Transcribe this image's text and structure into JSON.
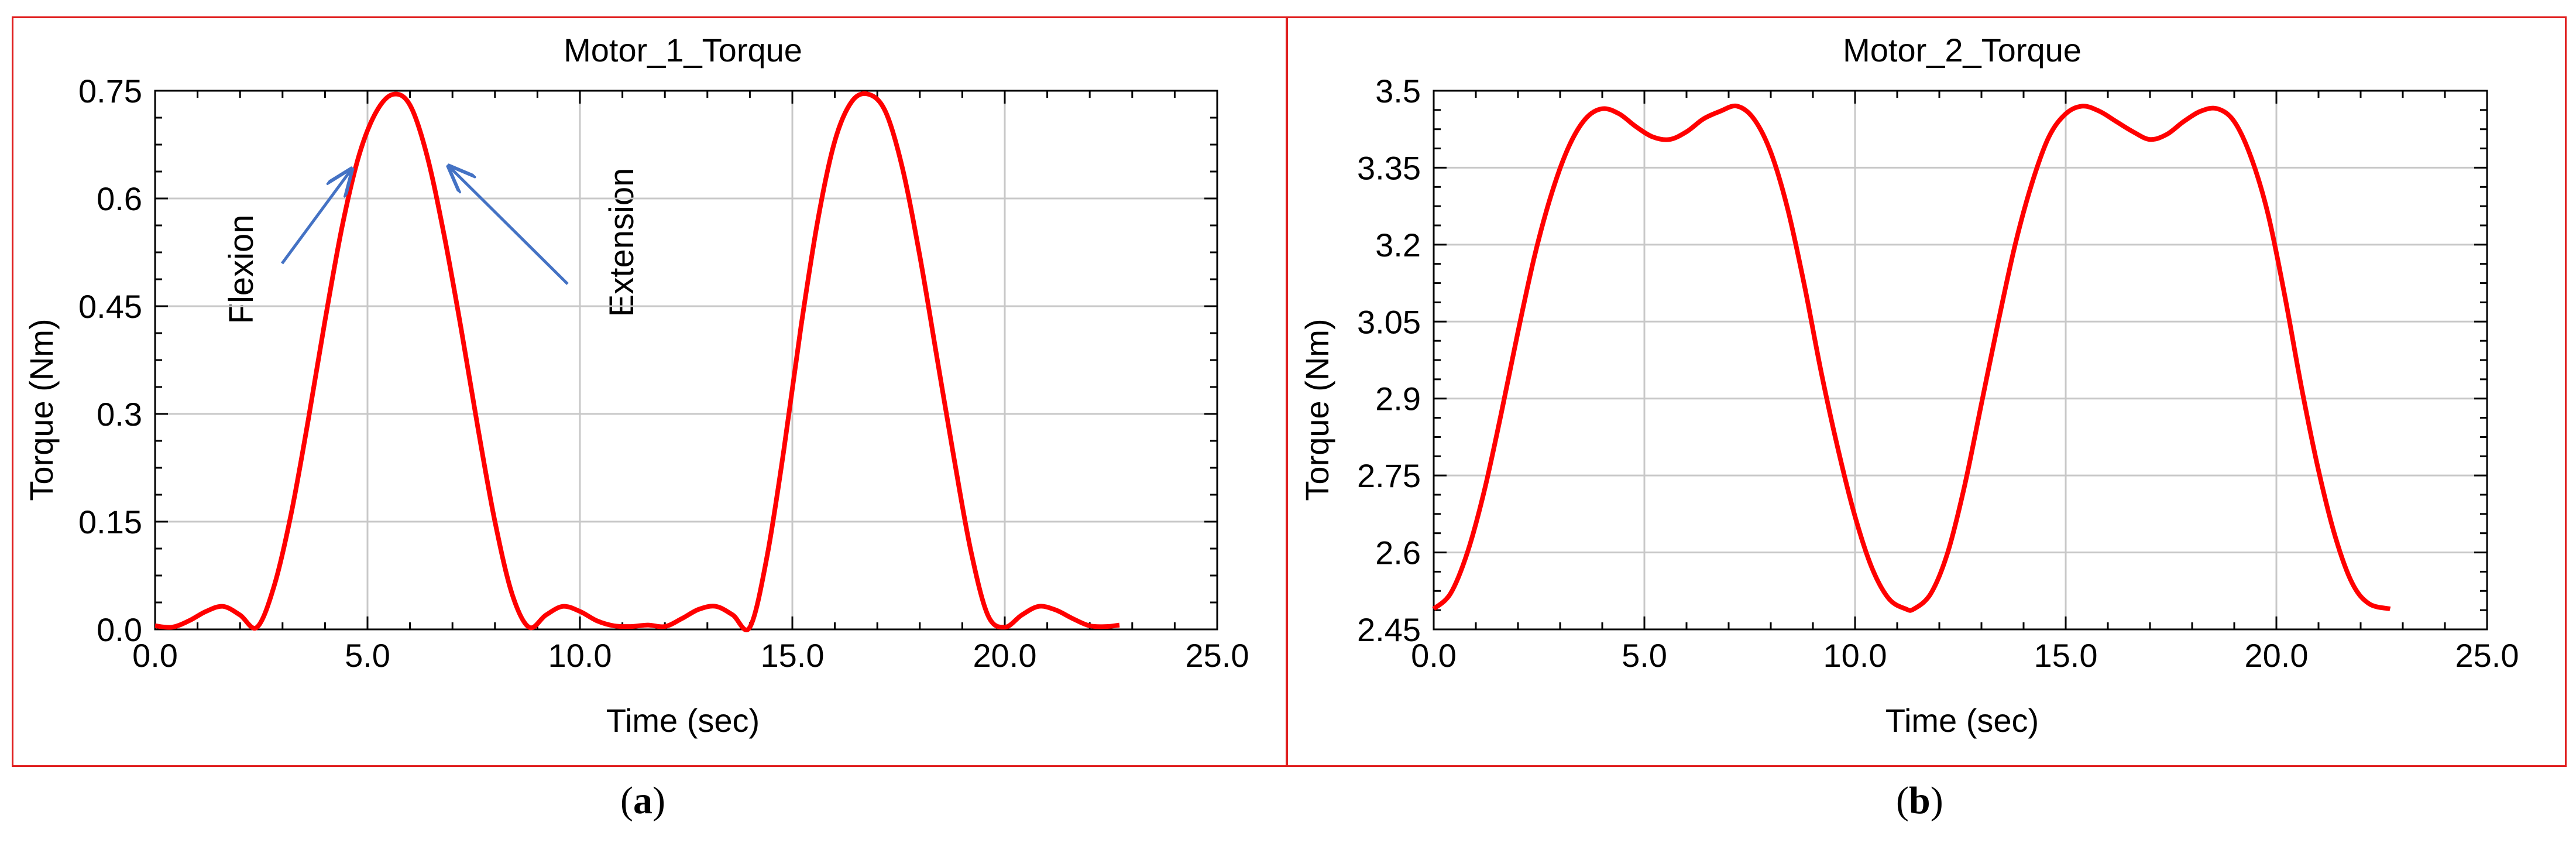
{
  "chart_data": [
    {
      "type": "line",
      "title": "Motor_1_Torque",
      "xlabel": "Time (sec)",
      "ylabel": "Torque (Nm)",
      "xlim": [
        0,
        25
      ],
      "ylim": [
        0,
        0.75
      ],
      "x_ticks": [
        "0.0",
        "5.0",
        "10.0",
        "15.0",
        "20.0",
        "25.0"
      ],
      "y_ticks": [
        "0.0",
        "0.15",
        "0.3",
        "0.45",
        "0.6",
        "0.75"
      ],
      "grid": true,
      "line_color": "#ff0000",
      "series": [
        {
          "x": [
            0,
            0.4,
            0.8,
            1.2,
            1.6,
            2.0,
            2.4,
            2.8,
            3.2,
            3.6,
            4.0,
            4.4,
            4.8,
            5.2,
            5.6,
            6.0,
            6.4,
            6.8,
            7.2,
            7.6,
            8.0,
            8.4,
            8.8,
            9.2,
            9.6,
            10.0,
            10.4,
            10.8,
            11.2,
            11.6,
            12.0,
            12.4,
            12.8,
            13.2,
            13.6,
            14.0,
            14.4,
            14.8,
            15.2,
            15.6,
            16.0,
            16.4,
            16.8,
            17.2,
            17.6,
            18.0,
            18.4,
            18.8,
            19.2,
            19.6,
            20.0,
            20.4,
            20.8,
            21.2,
            21.6,
            22.0,
            22.4,
            22.7
          ],
          "y": [
            0.005,
            0.003,
            0.012,
            0.025,
            0.032,
            0.02,
            0.003,
            0.06,
            0.16,
            0.29,
            0.43,
            0.56,
            0.66,
            0.72,
            0.745,
            0.73,
            0.66,
            0.55,
            0.42,
            0.28,
            0.15,
            0.05,
            0.003,
            0.02,
            0.032,
            0.025,
            0.012,
            0.005,
            0.004,
            0.006,
            0.004,
            0.015,
            0.028,
            0.032,
            0.02,
            0.003,
            0.1,
            0.25,
            0.42,
            0.57,
            0.68,
            0.735,
            0.745,
            0.72,
            0.64,
            0.52,
            0.38,
            0.24,
            0.11,
            0.02,
            0.003,
            0.02,
            0.032,
            0.027,
            0.015,
            0.005,
            0.004,
            0.006
          ]
        }
      ],
      "annotations": [
        "Flexion",
        "Extension"
      ]
    },
    {
      "type": "line",
      "title": "Motor_2_Torque",
      "xlabel": "Time (sec)",
      "ylabel": "Torque (Nm)",
      "xlim": [
        0,
        25
      ],
      "ylim": [
        2.45,
        3.5
      ],
      "x_ticks": [
        "0.0",
        "5.0",
        "10.0",
        "15.0",
        "20.0",
        "25.0"
      ],
      "y_ticks": [
        "2.45",
        "2.6",
        "2.75",
        "2.9",
        "3.05",
        "3.2",
        "3.35",
        "3.5"
      ],
      "grid": true,
      "line_color": "#ff0000",
      "series": [
        {
          "x": [
            0,
            0.4,
            0.8,
            1.2,
            1.6,
            2.0,
            2.4,
            2.8,
            3.2,
            3.6,
            4.0,
            4.4,
            4.8,
            5.2,
            5.6,
            6.0,
            6.4,
            6.8,
            7.2,
            7.6,
            8.0,
            8.4,
            8.8,
            9.2,
            9.6,
            10.0,
            10.4,
            10.8,
            11.2,
            11.4,
            11.8,
            12.2,
            12.6,
            13.0,
            13.4,
            13.8,
            14.2,
            14.6,
            15.0,
            15.4,
            15.8,
            16.2,
            16.6,
            17.0,
            17.4,
            17.8,
            18.2,
            18.6,
            19.0,
            19.4,
            19.8,
            20.2,
            20.6,
            21.0,
            21.4,
            21.8,
            22.2,
            22.7
          ],
          "y": [
            2.49,
            2.52,
            2.6,
            2.72,
            2.87,
            3.03,
            3.18,
            3.3,
            3.39,
            3.445,
            3.465,
            3.455,
            3.43,
            3.41,
            3.405,
            3.42,
            3.445,
            3.46,
            3.47,
            3.445,
            3.38,
            3.27,
            3.12,
            2.95,
            2.8,
            2.67,
            2.57,
            2.51,
            2.49,
            2.49,
            2.52,
            2.6,
            2.73,
            2.89,
            3.05,
            3.2,
            3.32,
            3.41,
            3.455,
            3.47,
            3.46,
            3.44,
            3.42,
            3.405,
            3.415,
            3.44,
            3.46,
            3.465,
            3.44,
            3.37,
            3.26,
            3.1,
            2.92,
            2.76,
            2.63,
            2.54,
            2.5,
            2.49
          ]
        }
      ]
    }
  ],
  "captions": {
    "a": "a",
    "b": "b"
  },
  "colors": {
    "frame": "#e02020",
    "grid": "#c8c8c8",
    "arrow": "#4472c4"
  }
}
